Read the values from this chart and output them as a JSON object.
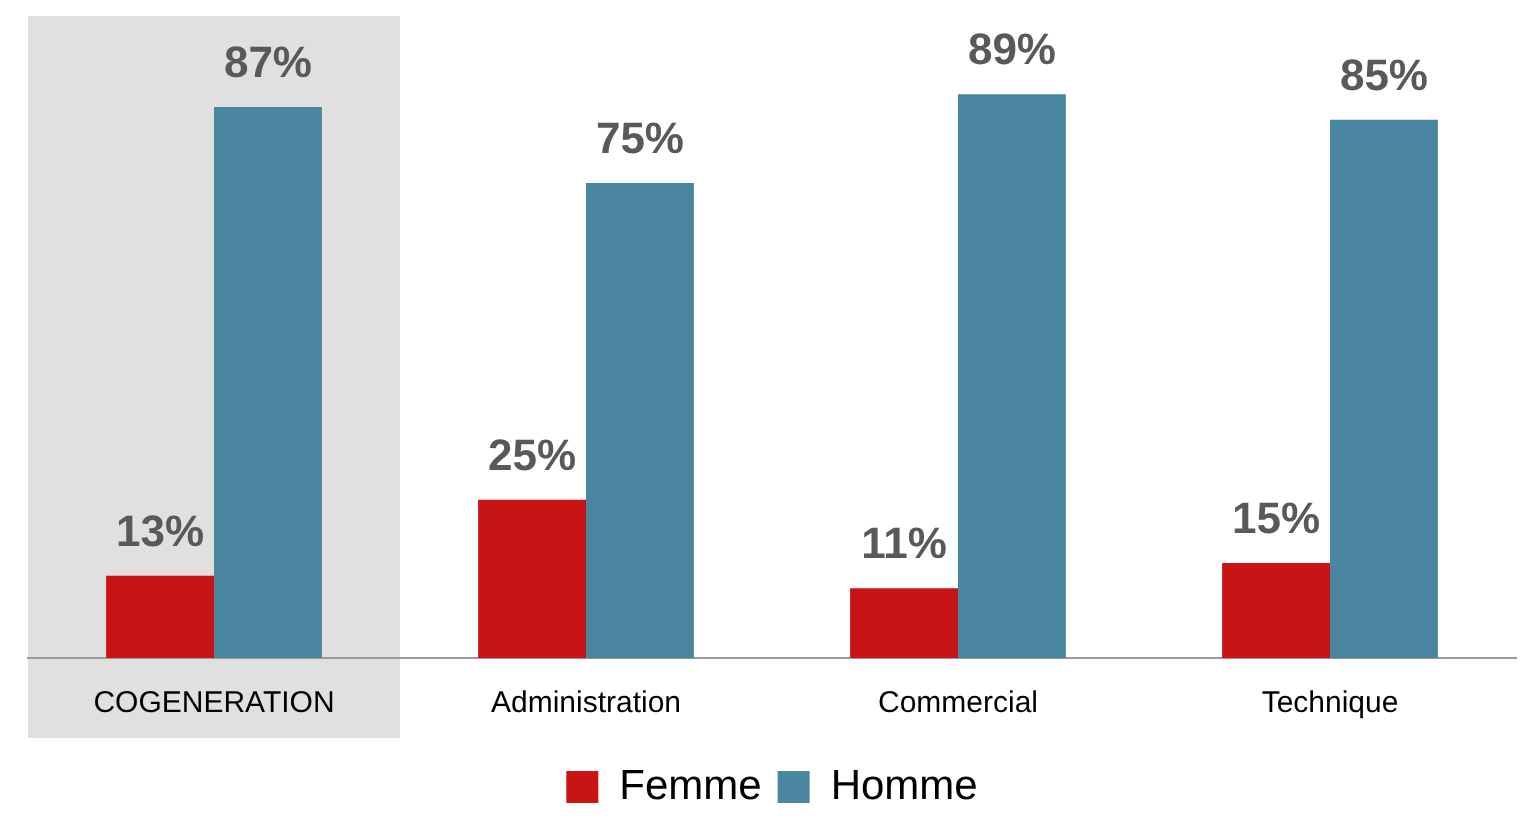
{
  "chart_data": {
    "type": "bar",
    "categories": [
      "COGENERATION",
      "Administration",
      "Commercial",
      "Technique"
    ],
    "series": [
      {
        "name": "Femme",
        "color": "#c81414",
        "values": [
          13,
          25,
          11,
          15
        ],
        "value_labels": [
          "13%",
          "25%",
          "11%",
          "15%"
        ]
      },
      {
        "name": "Homme",
        "color": "#4a86a0",
        "values": [
          87,
          75,
          89,
          85
        ],
        "value_labels": [
          "87%",
          "75%",
          "89%",
          "85%"
        ]
      }
    ],
    "bands": [
      {
        "axis": "x",
        "from": "COGENERATION",
        "to": "COGENERATION",
        "color": "#e0e0e0"
      }
    ],
    "grid": false,
    "legend": "bottom"
  }
}
